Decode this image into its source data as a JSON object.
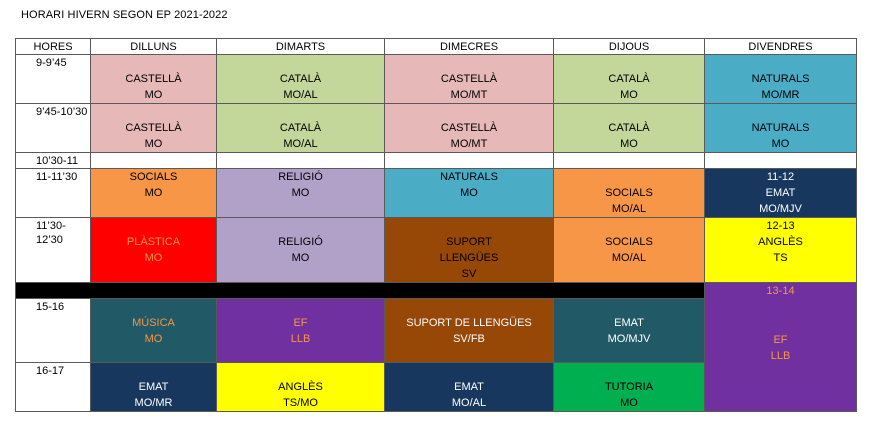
{
  "title": "HORARI HIVERN SEGON  EP 2021-2022",
  "headers": [
    "HORES",
    "DILLUNS",
    "DIMARTS",
    "DIMECRES",
    "DIJOUS",
    "DIVENDRES"
  ],
  "colors": {
    "pink": "#e6b8b7",
    "green_light": "#c4d79b",
    "teal": "#4bacc6",
    "orange": "#f79646",
    "lavender": "#b1a0c7",
    "navy": "#17375e",
    "red": "#ff0000",
    "brown": "#974706",
    "yellow": "#ffff00",
    "dark_teal": "#215967",
    "purple": "#7030a0",
    "green": "#00b050"
  },
  "rows": {
    "r1": {
      "hour": "9-9’45",
      "mon": {
        "subject": "CASTELLÀ",
        "teacher": "MO"
      },
      "tue": {
        "subject": "CATALÀ",
        "teacher": "MO/AL"
      },
      "wed": {
        "subject": "CASTELLÀ",
        "teacher": "MO/MT"
      },
      "thu": {
        "subject": "CATALÀ",
        "teacher": "MO"
      },
      "fri": {
        "subject": "NATURALS",
        "teacher": "MO/MR"
      }
    },
    "r2": {
      "hour": "9’45-10’30",
      "mon": {
        "subject": "CASTELLÀ",
        "teacher": "MO"
      },
      "tue": {
        "subject": "CATALÀ",
        "teacher": "MO/AL"
      },
      "wed": {
        "subject": "CASTELLÀ",
        "teacher": "MO/MT"
      },
      "thu": {
        "subject": "CATALÀ",
        "teacher": "MO"
      },
      "fri": {
        "subject": "NATURALS",
        "teacher": "MO"
      }
    },
    "r3": {
      "hour": "10’30-11"
    },
    "r4": {
      "hour": "11-11’30",
      "mon": {
        "subject": "SOCIALS",
        "teacher": "MO"
      },
      "tue": {
        "subject": "RELIGIÓ",
        "teacher": "MO"
      },
      "wed": {
        "subject": "NATURALS",
        "teacher": "MO"
      },
      "thu": {
        "subject": "SOCIALS",
        "teacher": "MO/AL"
      },
      "fri": {
        "time": "11-12",
        "subject": "EMAT",
        "teacher": "MO/MJV"
      }
    },
    "r5": {
      "hour_l1": "11’30-",
      "hour_l2": "12’30",
      "mon": {
        "subject": "PLÀSTICA",
        "teacher": "MO"
      },
      "tue": {
        "subject": "RELIGIÓ",
        "teacher": "MO"
      },
      "wed": {
        "subject": "SUPORT",
        "subject2": "LLENGÜES",
        "teacher": "SV"
      },
      "thu": {
        "subject": "SOCIALS",
        "teacher": "MO/AL"
      },
      "fri": {
        "time": "12-13",
        "subject": "ANGLÈS",
        "teacher": "TS"
      }
    },
    "r6": {
      "fri": {
        "time": "13-14",
        "subject": "EF",
        "teacher": "LLB"
      }
    },
    "r7": {
      "hour": "15-16",
      "mon": {
        "subject": "MÚSICA",
        "teacher": "MO"
      },
      "tue": {
        "subject": "EF",
        "teacher": "LLB"
      },
      "wed": {
        "subject": "SUPORT DE LLENGÜES",
        "teacher": "SV/FB"
      },
      "thu": {
        "subject": "EMAT",
        "teacher": "MO/MJV"
      }
    },
    "r8": {
      "hour": "16-17",
      "mon": {
        "subject": "EMAT",
        "teacher": "MO/MR"
      },
      "tue": {
        "subject": "ANGLÈS",
        "teacher": "TS/MO"
      },
      "wed": {
        "subject": "EMAT",
        "teacher": "MO/AL"
      },
      "thu": {
        "subject": "TUTORIA",
        "teacher": "MO"
      }
    }
  }
}
